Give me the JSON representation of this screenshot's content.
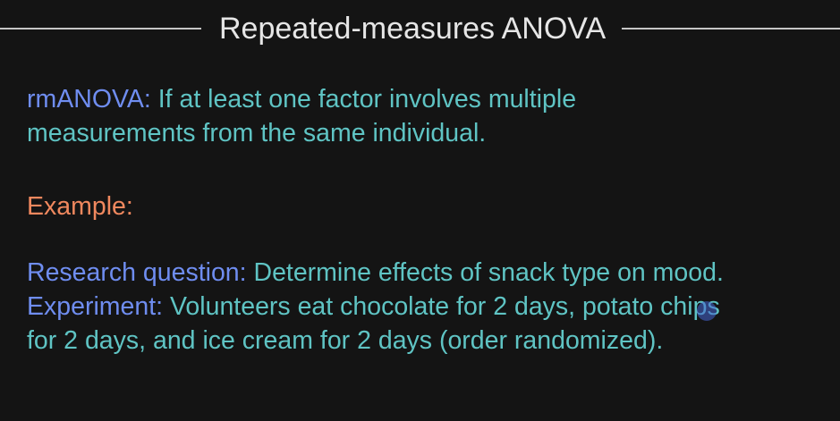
{
  "slide": {
    "title": "Repeated-measures ANOVA",
    "definition": {
      "label": "rmANOVA:",
      "text": " If at least one factor involves multiple",
      "text_line2": "measurements from the same individual."
    },
    "example_label": "Example:",
    "research_question": {
      "label": "Research question:",
      "text": " Determine effects of snack type on mood."
    },
    "experiment": {
      "label": "Experiment:",
      "text": " Volunteers eat chocolate for 2 days, potato chips",
      "text_line2": "for 2 days, and ice cream for 2 days (order randomized)."
    }
  },
  "colors": {
    "background": "#141414",
    "title": "#e6e6e6",
    "label_blue": "#6f8df0",
    "label_orange": "#f0885e",
    "body_text": "#5fc4c4"
  }
}
